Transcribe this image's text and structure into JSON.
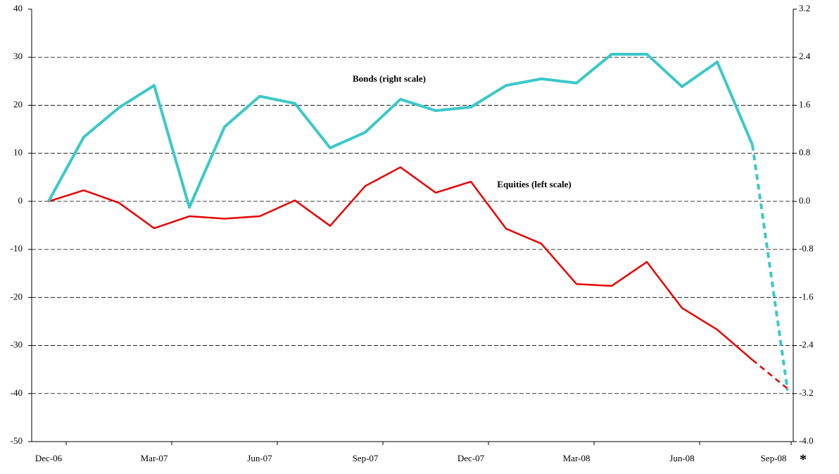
{
  "chart_data": {
    "type": "line",
    "categories": [
      "Dec-06",
      null,
      null,
      "Mar-07",
      null,
      null,
      "Jun-07",
      null,
      null,
      "Sep-07",
      null,
      null,
      "Dec-07",
      null,
      null,
      "Mar-08",
      null,
      null,
      "Jun-08",
      null,
      null,
      "Sep-08"
    ],
    "note": "*",
    "dash_from_index": 20,
    "series": [
      {
        "name": "Equities (left scale)",
        "color": "#e60000",
        "axis": "y",
        "values": [
          0,
          2.3,
          -0.3,
          -5.6,
          -3.1,
          -3.6,
          -3.1,
          0.2,
          -5.1,
          3.2,
          7.1,
          1.8,
          4.1,
          -5.7,
          -8.8,
          -17.2,
          -17.6,
          -12.6,
          -22.2,
          -26.7,
          -33.0,
          -39.0
        ]
      },
      {
        "name": "Bonds (right scale)",
        "color": "#3cc8c8",
        "axis": "y2",
        "values": [
          0,
          1.07,
          1.56,
          1.93,
          -0.1,
          1.24,
          1.75,
          1.63,
          0.89,
          1.15,
          1.7,
          1.51,
          1.57,
          1.93,
          2.04,
          1.97,
          2.45,
          2.45,
          1.91,
          2.32,
          0.94,
          -3.15
        ]
      }
    ],
    "ylim": [
      -50,
      40
    ],
    "yticks": [
      -50,
      -40,
      -30,
      -20,
      -10,
      0,
      10,
      20,
      30,
      40
    ],
    "y2lim": [
      -4.0,
      3.2
    ],
    "y2ticks": [
      {
        "value": -4.0,
        "label": "-4.0"
      },
      {
        "value": -3.2,
        "label": "-3.2"
      },
      {
        "value": -2.4,
        "label": "-2.4"
      },
      {
        "value": -1.6,
        "label": "-1.6"
      },
      {
        "value": -0.8,
        "label": "-0.8"
      },
      {
        "value": 0,
        "label": "0.0"
      },
      0.8,
      1.6,
      2.4,
      3.2
    ],
    "grid": true
  }
}
